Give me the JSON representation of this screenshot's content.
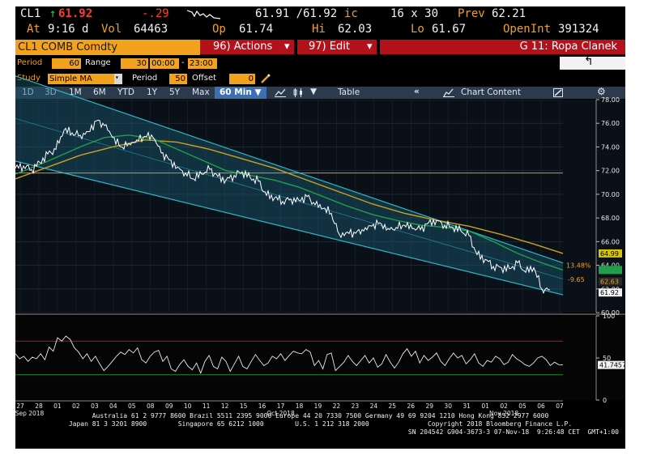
{
  "header": {
    "ticker": "CL1",
    "arrow": "↑",
    "last": "61.92",
    "change": "-.29",
    "bid_ask": "61.91 /61.92",
    "bid_ask_suffix": "ic",
    "size": "16 x 30",
    "prev_label": "Prev",
    "prev": "62.21",
    "at_label": "At",
    "at_time": "9:16",
    "at_suffix": "d",
    "vol_label": "Vol",
    "vol": "64463",
    "op_label": "Op",
    "op": "61.74",
    "hi_label": "Hi",
    "hi": "62.03",
    "lo_label": "Lo",
    "lo": "61.67",
    "oi_label": "OpenInt",
    "oi": "391324"
  },
  "security": {
    "name": "CL1 COMB Comdty",
    "actions_label": "96) Actions",
    "edit_label": "97) Edit",
    "group_label": "G 11: Ropa Clanek"
  },
  "controls": {
    "period_label": "Period",
    "period_value": "60",
    "range_label": "Range",
    "range_value": "30",
    "time_from": "00:00",
    "time_sep": "-",
    "time_to": "23:00",
    "study_label": "Study",
    "study_value": "Simple MA",
    "study_period_label": "Period",
    "study_period_value": "50",
    "offset_label": "Offset",
    "offset_value": "0"
  },
  "toolbar": {
    "ranges": [
      "1D",
      "3D",
      "1M",
      "6M",
      "YTD",
      "1Y",
      "5Y",
      "Max"
    ],
    "interval": "60 Min ▼",
    "table_label": "Table",
    "chart_content_label": "Chart Content"
  },
  "footer": {
    "line1": "Australia 61 2 9777 8600 Brazil 5511 2395 9000 Europe 44 20 7330 7500 Germany 49 69 9204 1210 Hong Kong 852 2977 6000",
    "line2": "Japan 81 3 3201 8900        Singapore 65 6212 1000        U.S. 1 212 318 2000               Copyright 2018 Bloomberg Finance L.P.",
    "line3": "SN 204542 G904-3673-3 07-Nov-18  9:26:48 CET  GMT+1:00"
  },
  "colors": {
    "price": "#ffffff",
    "ma_short": "#1fa04a",
    "ma_long": "#c9a21a",
    "horizontal_line": "#d4a000",
    "channel": "#2cb7c8",
    "rsi": "#e9e9e9",
    "rsi_upper": "#b01a1a",
    "rsi_lower": "#1a8a2a"
  },
  "chart_data": {
    "type": "line",
    "ylim": [
      60,
      78
    ],
    "yticks": [
      "78.00",
      "76.00",
      "74.00",
      "72.00",
      "70.00",
      "68.00",
      "66.00",
      "64.00",
      "62.00",
      "60.00"
    ],
    "xticks": [
      "27",
      "28",
      "01",
      "02",
      "03",
      "04",
      "05",
      "08",
      "09",
      "10",
      "11",
      "12",
      "15",
      "16",
      "17",
      "18",
      "19",
      "22",
      "23",
      "24",
      "25",
      "26",
      "29",
      "30",
      "31",
      "01",
      "02",
      "05",
      "06",
      "07"
    ],
    "month_labels": [
      "Sep 2018",
      "Oct 2018",
      "Nov 2018"
    ],
    "price_x": [
      0,
      10,
      20,
      30,
      40,
      50,
      60,
      70,
      80,
      90,
      100,
      110,
      120,
      130,
      140,
      150,
      160,
      170,
      180,
      190,
      200,
      210,
      220,
      230,
      240,
      250,
      260,
      270,
      280,
      290,
      300,
      310,
      320,
      330,
      340,
      350,
      360,
      370,
      380,
      390,
      400,
      410,
      420,
      430,
      440,
      450,
      460,
      470,
      480,
      490,
      500,
      510,
      520,
      530,
      540,
      550,
      560,
      570,
      580,
      590,
      600,
      610,
      620,
      630,
      640,
      650,
      660
    ],
    "price": [
      72.2,
      72.4,
      72.1,
      72.7,
      73.4,
      73.8,
      75.4,
      75.2,
      75.0,
      75.3,
      76.2,
      75.8,
      74.8,
      74.0,
      74.3,
      74.6,
      74.9,
      74.8,
      73.5,
      72.9,
      72.3,
      71.8,
      71.3,
      71.7,
      72.1,
      71.5,
      71.2,
      71.6,
      71.9,
      71.4,
      71.1,
      69.9,
      69.7,
      69.4,
      69.6,
      69.5,
      69.8,
      69.1,
      68.8,
      68.4,
      66.6,
      66.8,
      66.7,
      66.9,
      67.3,
      67.6,
      67.1,
      67.2,
      67.4,
      67.1,
      67.0,
      67.6,
      67.8,
      67.4,
      67.2,
      66.9,
      66.5,
      64.9,
      64.5,
      63.9,
      63.8,
      63.7,
      64.2,
      63.4,
      63.8,
      62.0,
      61.92
    ],
    "ma_short_x": [
      0,
      40,
      80,
      110,
      140,
      170,
      200,
      230,
      260,
      290,
      320,
      350,
      380,
      410,
      440,
      470,
      500,
      530,
      560,
      590,
      620,
      650,
      676
    ],
    "ma_short": [
      71.7,
      72.8,
      74.0,
      74.8,
      75.0,
      74.7,
      73.8,
      72.9,
      72.0,
      71.6,
      71.2,
      70.6,
      69.8,
      69.0,
      68.3,
      67.8,
      67.4,
      67.2,
      66.9,
      66.0,
      65.0,
      64.2,
      63.6
    ],
    "ma_long_x": [
      0,
      40,
      80,
      120,
      160,
      200,
      240,
      280,
      320,
      360,
      400,
      440,
      480,
      520,
      560,
      600,
      640,
      676
    ],
    "ma_long": [
      71.3,
      72.3,
      73.3,
      74.0,
      74.6,
      74.4,
      73.8,
      73.0,
      72.2,
      71.2,
      70.2,
      69.2,
      68.4,
      67.8,
      67.3,
      66.6,
      65.8,
      65.0
    ],
    "horizontal_line": 71.8,
    "channel_upper": [
      [
        0,
        80.0
      ],
      [
        676,
        64.2
      ]
    ],
    "channel_lower": [
      [
        0,
        72.8
      ],
      [
        676,
        61.5
      ]
    ],
    "annotations": [
      "13.48%",
      "-9.65"
    ],
    "right_labels": [
      "64.99",
      "63.60",
      "62.63",
      "61.92"
    ],
    "rsi_ylim": [
      0,
      100
    ],
    "rsi_ticks": [
      "100",
      "50",
      "0"
    ],
    "rsi_upper": 70,
    "rsi_lower": 30,
    "rsi_last": "41.7457",
    "rsi": [
      55,
      49,
      52,
      46,
      51,
      49,
      55,
      48,
      63,
      58,
      74,
      70,
      76,
      72,
      62,
      57,
      49,
      55,
      46,
      52,
      43,
      35,
      40,
      46,
      52,
      57,
      54,
      60,
      56,
      62,
      48,
      44,
      52,
      57,
      59,
      46,
      52,
      37,
      34,
      42,
      48,
      40,
      36,
      44,
      32,
      46,
      53,
      40,
      37,
      51,
      46,
      34,
      43,
      52,
      40,
      37,
      46,
      54,
      47,
      41,
      44,
      52,
      49,
      55,
      47,
      53,
      58,
      56,
      55,
      60,
      57,
      41,
      47,
      37,
      54,
      56,
      35,
      40,
      45,
      53,
      46,
      41,
      47,
      53,
      44,
      50,
      39,
      43,
      54,
      45,
      38,
      45,
      55,
      61,
      52,
      58,
      44,
      53,
      47,
      51,
      56,
      46,
      41,
      49,
      56,
      50,
      53,
      43,
      48,
      55,
      44,
      40,
      47,
      45,
      52,
      49,
      42,
      45,
      54,
      49,
      46,
      42,
      40,
      44,
      50,
      52,
      48,
      41,
      45,
      42,
      41.7
    ]
  }
}
